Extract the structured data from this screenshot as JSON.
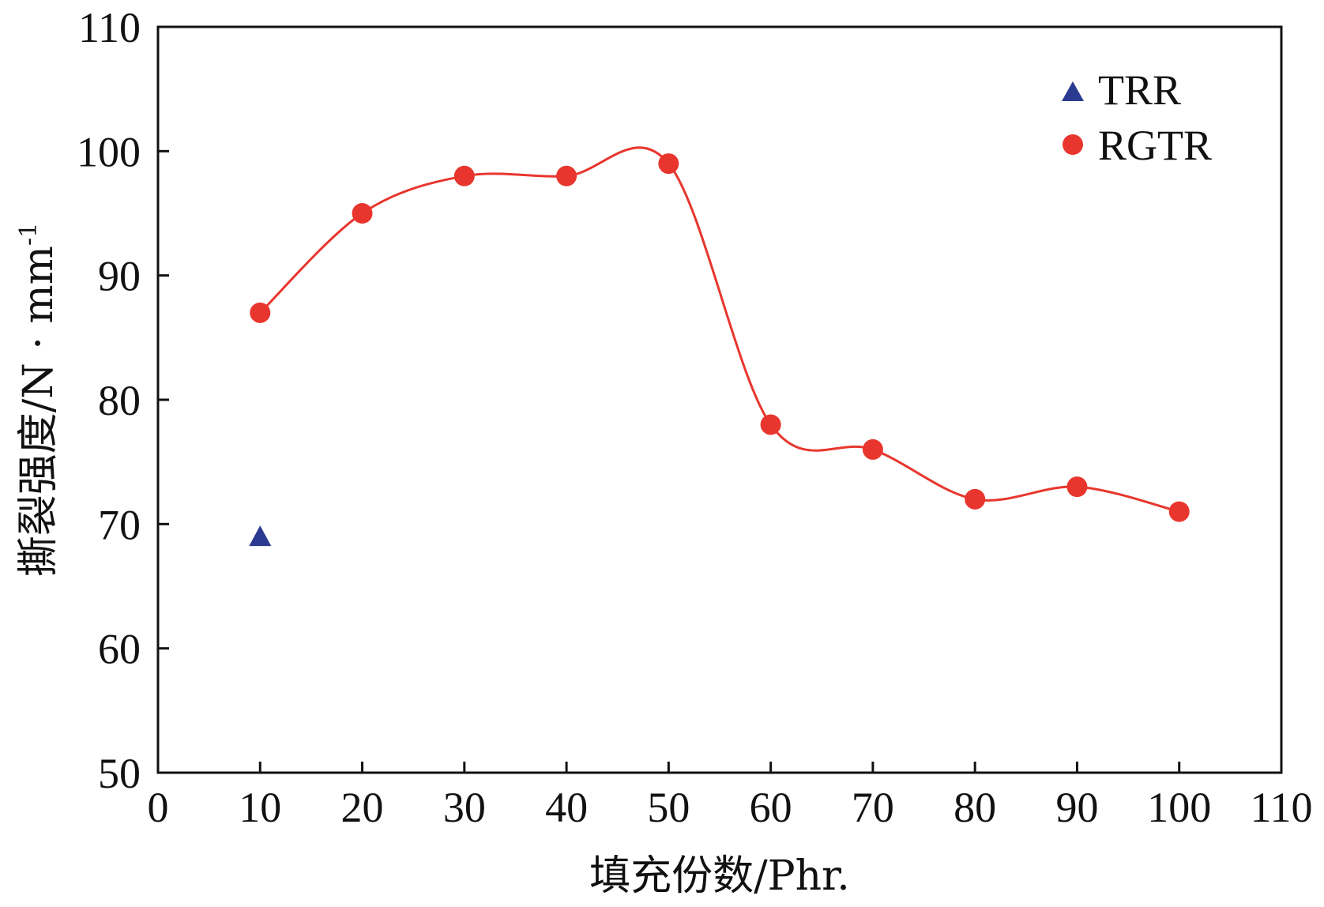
{
  "chart_data": {
    "type": "line",
    "title": "",
    "xlabel": "填充份数/Phr.",
    "ylabel": "撕裂强度/N · mm",
    "ylabel_superscript": "-1",
    "xlim": [
      0,
      110
    ],
    "ylim": [
      50,
      110
    ],
    "x_ticks": [
      0,
      10,
      20,
      30,
      40,
      50,
      60,
      70,
      80,
      90,
      100,
      110
    ],
    "y_ticks": [
      50,
      60,
      70,
      80,
      90,
      100,
      110
    ],
    "grid": false,
    "legend_position": "top-right",
    "series": [
      {
        "name": "TRR",
        "marker": "triangle",
        "color": "#2b3b8f",
        "line": false,
        "x": [
          10
        ],
        "y": [
          69
        ]
      },
      {
        "name": "RGTR",
        "marker": "circle",
        "color": "#e8362e",
        "line": true,
        "x": [
          10,
          20,
          30,
          40,
          50,
          60,
          70,
          80,
          90,
          100
        ],
        "y": [
          87,
          95,
          98,
          98,
          99,
          78,
          76,
          72,
          73,
          71
        ]
      }
    ]
  }
}
